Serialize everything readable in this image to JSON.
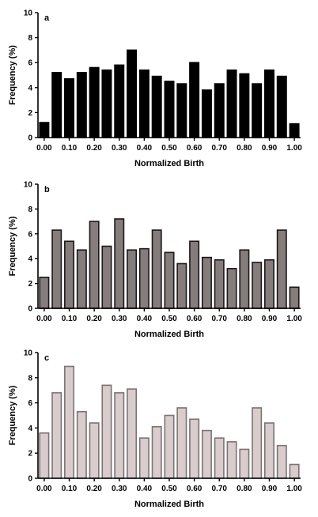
{
  "chart_data": [
    {
      "type": "bar",
      "panel_label": "a",
      "xlabel": "Normalized Birth",
      "ylabel": "Frequency (%)",
      "ylim": [
        0,
        10
      ],
      "yticks": [
        "0",
        "2",
        "4",
        "6",
        "8",
        "10"
      ],
      "xlim": [
        -0.025,
        1.025
      ],
      "xticks": [
        "0.00",
        "0.10",
        "0.20",
        "0.30",
        "0.40",
        "0.50",
        "0.60",
        "0.70",
        "0.80",
        "0.90",
        "1.00"
      ],
      "fill_color": "#000000",
      "stroke_color": "#000000",
      "x": [
        0.0,
        0.05,
        0.1,
        0.15,
        0.2,
        0.25,
        0.3,
        0.35,
        0.4,
        0.45,
        0.5,
        0.55,
        0.6,
        0.65,
        0.7,
        0.75,
        0.8,
        0.85,
        0.9,
        0.95,
        1.0
      ],
      "values": [
        1.2,
        5.2,
        4.7,
        5.2,
        5.6,
        5.4,
        5.8,
        7.0,
        5.4,
        4.9,
        4.5,
        4.3,
        6.0,
        3.8,
        4.3,
        5.4,
        5.1,
        4.3,
        5.4,
        4.9,
        1.1
      ],
      "grid": false
    },
    {
      "type": "bar",
      "panel_label": "b",
      "xlabel": "Normalized Birth",
      "ylabel": "Frequency (%)",
      "ylim": [
        0,
        10
      ],
      "yticks": [
        "0",
        "2",
        "4",
        "6",
        "8",
        "10"
      ],
      "xlim": [
        -0.025,
        1.025
      ],
      "xticks": [
        "0.00",
        "0.10",
        "0.20",
        "0.30",
        "0.40",
        "0.50",
        "0.60",
        "0.70",
        "0.80",
        "0.90",
        "1.00"
      ],
      "fill_color": "#857c7c",
      "stroke_color": "#1e1818",
      "x": [
        0.0,
        0.05,
        0.1,
        0.15,
        0.2,
        0.25,
        0.3,
        0.35,
        0.4,
        0.45,
        0.5,
        0.55,
        0.6,
        0.65,
        0.7,
        0.75,
        0.8,
        0.85,
        0.9,
        0.95,
        1.0
      ],
      "values": [
        2.5,
        6.3,
        5.4,
        4.7,
        7.0,
        5.0,
        7.2,
        4.7,
        4.8,
        6.3,
        4.5,
        3.6,
        5.4,
        4.1,
        3.9,
        3.2,
        4.7,
        3.7,
        3.9,
        6.3,
        1.7
      ],
      "grid": false
    },
    {
      "type": "bar",
      "panel_label": "c",
      "xlabel": "Normalized Birth",
      "ylabel": "Frequency (%)",
      "ylim": [
        0,
        10
      ],
      "yticks": [
        "0",
        "2",
        "4",
        "6",
        "8",
        "10"
      ],
      "xlim": [
        -0.025,
        1.025
      ],
      "xticks": [
        "0.00",
        "0.10",
        "0.20",
        "0.30",
        "0.40",
        "0.50",
        "0.60",
        "0.70",
        "0.80",
        "0.90",
        "1.00"
      ],
      "fill_color": "#d9cccc",
      "stroke_color": "#7d7373",
      "x": [
        0.0,
        0.05,
        0.1,
        0.15,
        0.2,
        0.25,
        0.3,
        0.35,
        0.4,
        0.45,
        0.5,
        0.55,
        0.6,
        0.65,
        0.7,
        0.75,
        0.8,
        0.85,
        0.9,
        0.95,
        1.0
      ],
      "values": [
        3.6,
        6.8,
        8.9,
        5.3,
        4.4,
        7.4,
        6.8,
        7.1,
        3.2,
        4.1,
        5.0,
        5.6,
        4.7,
        3.8,
        3.2,
        2.9,
        2.3,
        5.6,
        4.4,
        2.6,
        1.1
      ],
      "grid": false
    }
  ]
}
